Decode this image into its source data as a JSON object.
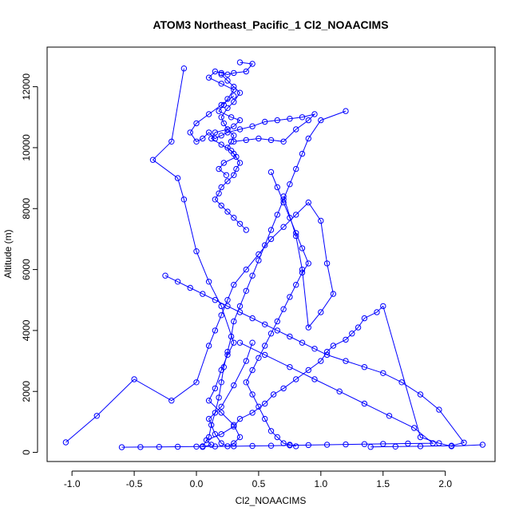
{
  "chart_data": {
    "type": "line",
    "title": "ATOM3 Northeast_Pacific_1 Cl2_NOAACIMS",
    "xlabel": "Cl2_NOAACIMS",
    "ylabel": "Altitude (m)",
    "xlim": [
      -1.2,
      2.4
    ],
    "ylim": [
      -300,
      13300
    ],
    "x_ticks": [
      -1.0,
      -0.5,
      0.0,
      0.5,
      1.0,
      1.5,
      2.0
    ],
    "x_tick_labels": [
      "-1.0",
      "-0.5",
      "0.0",
      "0.5",
      "1.0",
      "1.5",
      "2.0"
    ],
    "y_ticks": [
      0,
      2000,
      4000,
      6000,
      8000,
      10000,
      12000
    ],
    "y_tick_labels": [
      "0",
      "2000",
      "4000",
      "6000",
      "8000",
      "10000",
      "12000"
    ],
    "grid": false,
    "marker": "open-circle",
    "line_color": "#0000ff",
    "marker_color": "#0000ff",
    "series": [
      {
        "x": [
          0.05,
          0.12,
          0.08,
          0.2,
          0.3,
          0.35,
          0.45,
          0.55,
          0.62,
          0.7,
          0.8,
          0.9,
          1.0,
          1.05,
          1.1,
          1.2,
          1.25,
          1.3,
          1.35,
          1.45,
          1.5,
          1.8,
          1.95,
          2.05,
          2.3
        ],
        "y": [
          180,
          250,
          400,
          600,
          850,
          1100,
          1300,
          1600,
          1900,
          2100,
          2400,
          2700,
          3000,
          3300,
          3500,
          3700,
          3900,
          4100,
          4400,
          4600,
          4800,
          500,
          300,
          200,
          250
        ]
      },
      {
        "x": [
          -1.05,
          -0.8,
          -0.5,
          -0.2,
          0.0,
          0.1,
          0.15,
          0.2,
          0.25,
          0.3,
          0.4,
          0.5,
          0.6,
          0.7,
          0.8,
          0.9,
          1.0,
          1.05,
          1.1,
          1.0,
          0.9,
          0.85,
          0.8,
          0.7
        ],
        "y": [
          330,
          1200,
          2400,
          1700,
          2300,
          3500,
          4000,
          4500,
          5000,
          5500,
          6000,
          6500,
          7000,
          7400,
          7800,
          8200,
          7600,
          6200,
          5200,
          4600,
          4100,
          6000,
          7100,
          8400
        ]
      },
      {
        "x": [
          0.05,
          0.1,
          0.12,
          0.15,
          0.18,
          0.2,
          0.22,
          0.25,
          0.28,
          0.3,
          0.35,
          0.4,
          0.45,
          0.5,
          0.55,
          0.6,
          0.65,
          0.7,
          0.75,
          0.8,
          0.85,
          0.9,
          1.0,
          1.2
        ],
        "y": [
          200,
          500,
          900,
          1300,
          1800,
          2300,
          2800,
          3300,
          3800,
          4300,
          4800,
          5300,
          5800,
          6300,
          6800,
          7300,
          7800,
          8300,
          8800,
          9300,
          9800,
          10300,
          10900,
          11200
        ]
      },
      {
        "x": [
          -0.1,
          -0.2,
          -0.35,
          -0.15,
          -0.1,
          0.0,
          0.1,
          0.2,
          0.3,
          0.25,
          0.2,
          0.15,
          0.1,
          0.2,
          0.3,
          0.35,
          0.3,
          0.25,
          0.2,
          0.15,
          0.1,
          0.2,
          0.3,
          0.4,
          0.45
        ],
        "y": [
          12600,
          10200,
          9600,
          9000,
          8300,
          6600,
          5600,
          4800,
          3600,
          3200,
          2700,
          2100,
          1700,
          1300,
          900,
          500,
          300,
          200,
          300,
          600,
          1100,
          1500,
          2200,
          3000,
          3600
        ]
      },
      {
        "x": [
          0.2,
          0.25,
          0.3,
          0.35,
          0.3,
          0.25,
          0.2,
          0.22,
          0.25,
          0.3,
          0.28,
          0.25,
          0.3,
          0.35,
          0.32,
          0.3,
          0.25,
          0.2,
          0.18,
          0.15,
          0.2,
          0.25,
          0.3,
          0.35,
          0.4
        ],
        "y": [
          12400,
          12200,
          12000,
          11800,
          11500,
          11300,
          11000,
          10800,
          10600,
          10400,
          10200,
          10000,
          9800,
          9500,
          9300,
          9100,
          8900,
          8700,
          8500,
          8300,
          8100,
          7900,
          7700,
          7500,
          7300
        ]
      },
      {
        "x": [
          0.3,
          0.4,
          0.5,
          0.6,
          0.7,
          0.8,
          0.9,
          0.95,
          0.85,
          0.75,
          0.65,
          0.55,
          0.45,
          0.35,
          0.25,
          0.2,
          0.15,
          0.1,
          0.05,
          0.0,
          -0.05,
          0.0,
          0.1,
          0.2,
          0.3
        ],
        "y": [
          10200,
          10250,
          10300,
          10250,
          10200,
          10600,
          10900,
          11100,
          11000,
          10950,
          10900,
          10850,
          10700,
          10600,
          10500,
          10400,
          10300,
          10500,
          10300,
          10200,
          10500,
          10800,
          11100,
          11400,
          11700
        ]
      },
      {
        "x": [
          0.35,
          0.45,
          0.4,
          0.3,
          0.25,
          0.2,
          0.15,
          0.1,
          0.2,
          0.3,
          0.25,
          0.22,
          0.18,
          0.28,
          0.35,
          0.3,
          0.25,
          0.15,
          0.12,
          0.2,
          0.28,
          0.32,
          0.22,
          0.18,
          0.24
        ],
        "y": [
          12800,
          12750,
          12500,
          12450,
          12400,
          12450,
          12500,
          12300,
          12100,
          11900,
          11600,
          11400,
          11200,
          11000,
          10900,
          10700,
          10600,
          10500,
          10300,
          10100,
          9900,
          9700,
          9500,
          9300,
          9100
        ]
      },
      {
        "x": [
          0.6,
          0.65,
          0.7,
          0.75,
          0.8,
          0.85,
          0.9,
          0.85,
          0.8,
          0.75,
          0.7,
          0.65,
          0.6,
          0.55,
          0.5,
          0.45,
          0.4,
          0.45,
          0.5,
          0.55,
          0.6,
          0.65,
          0.7,
          0.75,
          0.8
        ],
        "y": [
          9200,
          8700,
          8200,
          7700,
          7200,
          6700,
          6200,
          5900,
          5500,
          5100,
          4700,
          4300,
          3900,
          3500,
          3100,
          2700,
          2300,
          1900,
          1500,
          1100,
          700,
          500,
          300,
          250,
          200
        ]
      },
      {
        "x": [
          1.4,
          1.6,
          1.8,
          2.05,
          2.15,
          1.95,
          1.8,
          1.65,
          1.5,
          1.35,
          1.2,
          1.05,
          0.95,
          0.85,
          0.75,
          0.65,
          0.55,
          0.45,
          0.35,
          0.25,
          0.15,
          0.05,
          -0.05,
          -0.15,
          -0.25
        ],
        "y": [
          180,
          190,
          200,
          220,
          320,
          1400,
          1900,
          2300,
          2600,
          2800,
          3000,
          3200,
          3400,
          3600,
          3800,
          4000,
          4200,
          4400,
          4600,
          4800,
          5000,
          5200,
          5400,
          5600,
          5800
        ]
      },
      {
        "x": [
          -0.6,
          -0.45,
          -0.3,
          -0.15,
          0.0,
          0.15,
          0.3,
          0.45,
          0.6,
          0.75,
          0.9,
          1.05,
          1.2,
          1.35,
          1.5,
          1.7,
          1.9,
          1.75,
          1.55,
          1.35,
          1.15,
          0.95,
          0.75,
          0.55,
          0.35
        ],
        "y": [
          170,
          175,
          180,
          185,
          190,
          195,
          200,
          210,
          220,
          230,
          240,
          250,
          260,
          270,
          280,
          290,
          300,
          800,
          1200,
          1600,
          2000,
          2400,
          2800,
          3200,
          3600
        ]
      }
    ]
  }
}
